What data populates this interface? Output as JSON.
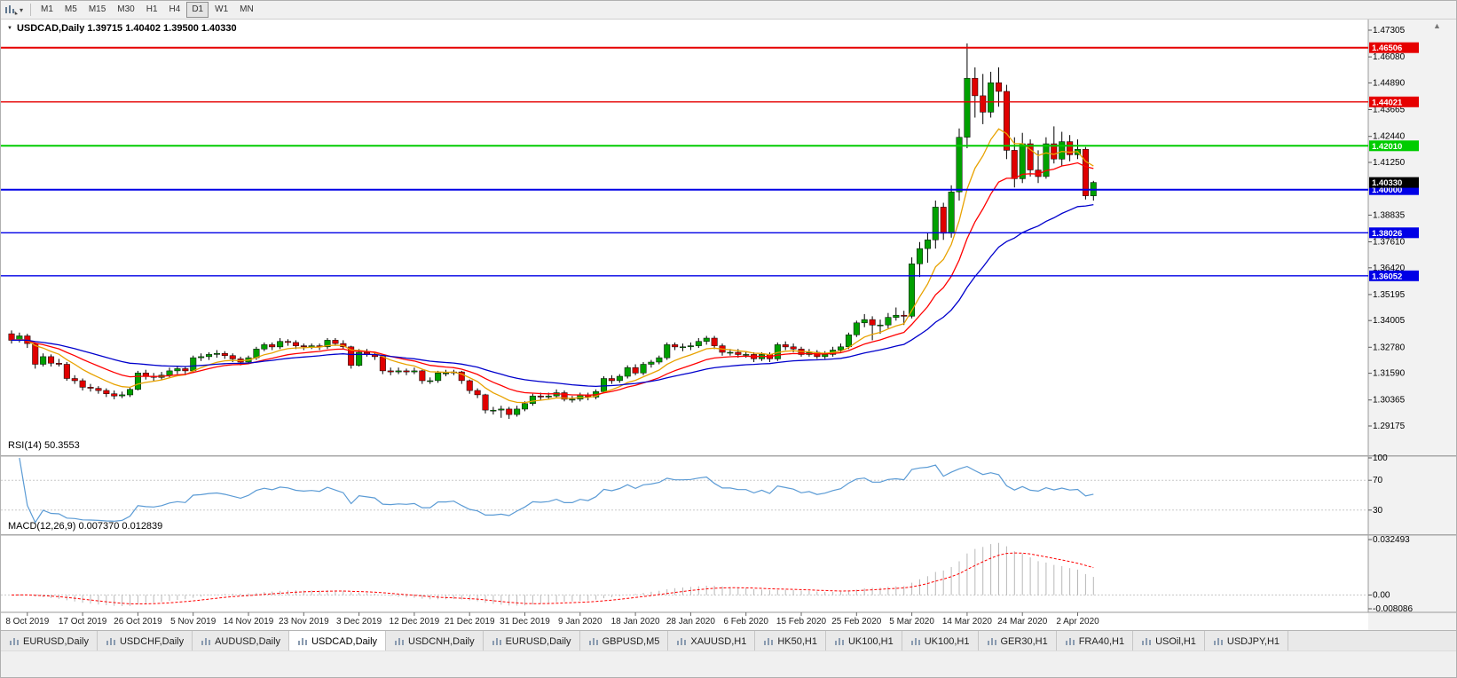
{
  "toolbar": {
    "timeframes": [
      {
        "label": "M1",
        "active": false
      },
      {
        "label": "M5",
        "active": false
      },
      {
        "label": "M15",
        "active": false
      },
      {
        "label": "M30",
        "active": false
      },
      {
        "label": "H1",
        "active": false
      },
      {
        "label": "H4",
        "active": false
      },
      {
        "label": "D1",
        "active": true
      },
      {
        "label": "W1",
        "active": false
      },
      {
        "label": "MN",
        "active": false
      }
    ],
    "dropdown_caret_glyph": "▾"
  },
  "chart": {
    "symbol": "USDCAD",
    "timeframe": "Daily",
    "title_text": "USDCAD,Daily  1.39715 1.40402 1.39500 1.40330",
    "ohlc": {
      "open": "1.39715",
      "high": "1.40402",
      "low": "1.39500",
      "close": "1.40330"
    },
    "collapse_glyph": "▼",
    "scroll_up_glyph": "▲"
  },
  "price_axis": {
    "ticks": [
      "1.47305",
      "1.46080",
      "1.44890",
      "1.43665",
      "1.42440",
      "1.41250",
      "1.38835",
      "1.37610",
      "1.36420",
      "1.35195",
      "1.34005",
      "1.32780",
      "1.31590",
      "1.30365",
      "1.29175"
    ]
  },
  "sr_lines": [
    {
      "label": "1.46506",
      "price": 1.46506,
      "color": "#e60000",
      "width": 2
    },
    {
      "label": "1.44021",
      "price": 1.44021,
      "color": "#e60000",
      "width": 1.4
    },
    {
      "label": "1.42010",
      "price": 1.4201,
      "color": "#00cc00",
      "width": 2
    },
    {
      "label": "1.40000",
      "price": 1.4,
      "color": "#0000e6",
      "width": 2
    },
    {
      "label": "1.38026",
      "price": 1.38026,
      "color": "#0000e6",
      "width": 1.4
    },
    {
      "label": "1.36052",
      "price": 1.36052,
      "color": "#0000e6",
      "width": 1.4
    }
  ],
  "current_price": {
    "label": "1.40330",
    "price": 1.4033,
    "color": "#000000"
  },
  "indicators": {
    "rsi": {
      "label": "RSI(14) 50.3553",
      "period": 14,
      "value": "50.3553",
      "levels": [
        {
          "label": "100",
          "value": 100
        },
        {
          "label": "70",
          "value": 70
        },
        {
          "label": "30",
          "value": 30
        }
      ],
      "line_color": "#5b9bd5"
    },
    "macd": {
      "label": "MACD(12,26,9) 0.007370 0.012839",
      "fast": 12,
      "slow": 26,
      "signal": 9,
      "values": [
        "0.007370",
        "0.012839"
      ],
      "ticks": [
        {
          "label": "0.032493",
          "value": 0.032493
        },
        {
          "label": "0.00",
          "value": 0
        },
        {
          "label": "-0.008086",
          "value": -0.008086
        }
      ],
      "histogram_color": "#b8b8b8",
      "signal_color": "#ff0000"
    }
  },
  "x_axis": {
    "labels": [
      "8 Oct 2019",
      "17 Oct 2019",
      "26 Oct 2019",
      "5 Nov 2019",
      "14 Nov 2019",
      "23 Nov 2019",
      "3 Dec 2019",
      "12 Dec 2019",
      "21 Dec 2019",
      "31 Dec 2019",
      "9 Jan 2020",
      "18 Jan 2020",
      "28 Jan 2020",
      "6 Feb 2020",
      "15 Feb 2020",
      "25 Feb 2020",
      "5 Mar 2020",
      "14 Mar 2020",
      "24 Mar 2020",
      "2 Apr 2020"
    ],
    "label_start_index": 2,
    "label_step": 7
  },
  "tabs": [
    {
      "label": "EURUSD,Daily",
      "active": false
    },
    {
      "label": "USDCHF,Daily",
      "active": false
    },
    {
      "label": "AUDUSD,Daily",
      "active": false
    },
    {
      "label": "USDCAD,Daily",
      "active": true
    },
    {
      "label": "USDCNH,Daily",
      "active": false
    },
    {
      "label": "EURUSD,Daily",
      "active": false
    },
    {
      "label": "GBPUSD,M5",
      "active": false
    },
    {
      "label": "XAUUSD,H1",
      "active": false
    },
    {
      "label": "HK50,H1",
      "active": false
    },
    {
      "label": "UK100,H1",
      "active": false
    },
    {
      "label": "UK100,H1",
      "active": false
    },
    {
      "label": "GER30,H1",
      "active": false
    },
    {
      "label": "FRA40,H1",
      "active": false
    },
    {
      "label": "USOil,H1",
      "active": false
    },
    {
      "label": "USDJPY,H1",
      "active": false
    }
  ],
  "chart_data": {
    "type": "candlestick",
    "symbol": "USDCAD",
    "timeframe": "D1",
    "title": "USDCAD,Daily",
    "last_ohlc": {
      "open": 1.39715,
      "high": 1.40402,
      "low": 1.395,
      "close": 1.4033
    },
    "y_range": [
      1.27874,
      1.47793
    ],
    "candles": [
      [
        1.334,
        1.3355,
        1.3295,
        1.331
      ],
      [
        1.331,
        1.3345,
        1.33,
        1.333
      ],
      [
        1.333,
        1.334,
        1.3275,
        1.3295
      ],
      [
        1.3295,
        1.33,
        1.318,
        1.32
      ],
      [
        1.32,
        1.325,
        1.319,
        1.3235
      ],
      [
        1.3235,
        1.3245,
        1.319,
        1.3205
      ],
      [
        1.3205,
        1.3225,
        1.319,
        1.32
      ],
      [
        1.32,
        1.321,
        1.3125,
        1.3135
      ],
      [
        1.3135,
        1.315,
        1.311,
        1.3125
      ],
      [
        1.3125,
        1.3135,
        1.308,
        1.3095
      ],
      [
        1.3095,
        1.311,
        1.3075,
        1.309
      ],
      [
        1.309,
        1.31,
        1.3065,
        1.308
      ],
      [
        1.308,
        1.309,
        1.305,
        1.3065
      ],
      [
        1.3065,
        1.308,
        1.304,
        1.3055
      ],
      [
        1.3055,
        1.3075,
        1.3045,
        1.306
      ],
      [
        1.306,
        1.3095,
        1.305,
        1.3085
      ],
      [
        1.3085,
        1.317,
        1.308,
        1.316
      ],
      [
        1.316,
        1.3175,
        1.313,
        1.3145
      ],
      [
        1.3145,
        1.316,
        1.3125,
        1.314
      ],
      [
        1.314,
        1.3165,
        1.313,
        1.315
      ],
      [
        1.315,
        1.3185,
        1.314,
        1.317
      ],
      [
        1.317,
        1.319,
        1.3155,
        1.318
      ],
      [
        1.318,
        1.319,
        1.315,
        1.317
      ],
      [
        1.317,
        1.324,
        1.316,
        1.323
      ],
      [
        1.323,
        1.325,
        1.3215,
        1.3235
      ],
      [
        1.3235,
        1.3255,
        1.322,
        1.3245
      ],
      [
        1.3245,
        1.3265,
        1.323,
        1.325
      ],
      [
        1.325,
        1.326,
        1.3225,
        1.324
      ],
      [
        1.324,
        1.325,
        1.321,
        1.3225
      ],
      [
        1.3225,
        1.3235,
        1.3195,
        1.321
      ],
      [
        1.321,
        1.324,
        1.32,
        1.323
      ],
      [
        1.323,
        1.328,
        1.322,
        1.327
      ],
      [
        1.327,
        1.33,
        1.326,
        1.329
      ],
      [
        1.329,
        1.33,
        1.3265,
        1.328
      ],
      [
        1.328,
        1.332,
        1.327,
        1.3305
      ],
      [
        1.3305,
        1.3315,
        1.3285,
        1.33
      ],
      [
        1.33,
        1.331,
        1.327,
        1.3285
      ],
      [
        1.3285,
        1.3295,
        1.3265,
        1.328
      ],
      [
        1.328,
        1.3295,
        1.327,
        1.3285
      ],
      [
        1.3285,
        1.3295,
        1.3265,
        1.328
      ],
      [
        1.328,
        1.332,
        1.327,
        1.331
      ],
      [
        1.331,
        1.332,
        1.3285,
        1.3295
      ],
      [
        1.3295,
        1.331,
        1.327,
        1.328
      ],
      [
        1.328,
        1.3285,
        1.318,
        1.3195
      ],
      [
        1.3195,
        1.327,
        1.319,
        1.3255
      ],
      [
        1.3255,
        1.327,
        1.3235,
        1.3245
      ],
      [
        1.3245,
        1.3255,
        1.322,
        1.3235
      ],
      [
        1.3235,
        1.324,
        1.3155,
        1.317
      ],
      [
        1.317,
        1.3185,
        1.315,
        1.3165
      ],
      [
        1.3165,
        1.3185,
        1.3155,
        1.317
      ],
      [
        1.317,
        1.318,
        1.315,
        1.3165
      ],
      [
        1.3165,
        1.3185,
        1.3155,
        1.317
      ],
      [
        1.317,
        1.3175,
        1.311,
        1.3125
      ],
      [
        1.3125,
        1.314,
        1.311,
        1.3125
      ],
      [
        1.3125,
        1.317,
        1.3115,
        1.316
      ],
      [
        1.316,
        1.3175,
        1.3145,
        1.316
      ],
      [
        1.316,
        1.3175,
        1.315,
        1.3165
      ],
      [
        1.3165,
        1.317,
        1.311,
        1.3125
      ],
      [
        1.3125,
        1.313,
        1.3065,
        1.308
      ],
      [
        1.308,
        1.309,
        1.3045,
        1.306
      ],
      [
        1.306,
        1.3065,
        1.2975,
        1.299
      ],
      [
        1.299,
        1.3005,
        1.297,
        1.299
      ],
      [
        1.299,
        1.301,
        1.2955,
        1.2995
      ],
      [
        1.2995,
        1.3005,
        1.295,
        1.297
      ],
      [
        1.297,
        1.301,
        1.296,
        1.2995
      ],
      [
        1.2995,
        1.303,
        1.2985,
        1.302
      ],
      [
        1.302,
        1.3065,
        1.301,
        1.3055
      ],
      [
        1.3055,
        1.307,
        1.3035,
        1.305
      ],
      [
        1.305,
        1.307,
        1.304,
        1.3055
      ],
      [
        1.3055,
        1.3085,
        1.3045,
        1.307
      ],
      [
        1.307,
        1.308,
        1.303,
        1.304
      ],
      [
        1.304,
        1.3055,
        1.3025,
        1.304
      ],
      [
        1.304,
        1.307,
        1.303,
        1.306
      ],
      [
        1.306,
        1.307,
        1.3035,
        1.305
      ],
      [
        1.305,
        1.3085,
        1.304,
        1.3075
      ],
      [
        1.3075,
        1.3145,
        1.307,
        1.3135
      ],
      [
        1.3135,
        1.315,
        1.311,
        1.3125
      ],
      [
        1.3125,
        1.3155,
        1.3115,
        1.3145
      ],
      [
        1.3145,
        1.3195,
        1.3135,
        1.3185
      ],
      [
        1.3185,
        1.32,
        1.315,
        1.316
      ],
      [
        1.316,
        1.321,
        1.315,
        1.32
      ],
      [
        1.32,
        1.322,
        1.3185,
        1.321
      ],
      [
        1.321,
        1.324,
        1.32,
        1.323
      ],
      [
        1.323,
        1.33,
        1.322,
        1.329
      ],
      [
        1.329,
        1.33,
        1.3265,
        1.328
      ],
      [
        1.328,
        1.3295,
        1.326,
        1.328
      ],
      [
        1.328,
        1.33,
        1.3265,
        1.3285
      ],
      [
        1.3285,
        1.332,
        1.3275,
        1.3305
      ],
      [
        1.3305,
        1.333,
        1.329,
        1.332
      ],
      [
        1.332,
        1.333,
        1.327,
        1.3285
      ],
      [
        1.3285,
        1.3295,
        1.324,
        1.3255
      ],
      [
        1.3255,
        1.327,
        1.324,
        1.3255
      ],
      [
        1.3255,
        1.327,
        1.323,
        1.3245
      ],
      [
        1.3245,
        1.326,
        1.323,
        1.3245
      ],
      [
        1.3245,
        1.3255,
        1.321,
        1.3225
      ],
      [
        1.3225,
        1.3255,
        1.3215,
        1.3245
      ],
      [
        1.3245,
        1.3255,
        1.321,
        1.3225
      ],
      [
        1.3225,
        1.33,
        1.3215,
        1.329
      ],
      [
        1.329,
        1.3305,
        1.3265,
        1.328
      ],
      [
        1.328,
        1.3295,
        1.3255,
        1.327
      ],
      [
        1.327,
        1.328,
        1.3235,
        1.3245
      ],
      [
        1.3245,
        1.327,
        1.3235,
        1.3255
      ],
      [
        1.3255,
        1.3265,
        1.3225,
        1.3235
      ],
      [
        1.3235,
        1.326,
        1.3225,
        1.3245
      ],
      [
        1.3245,
        1.328,
        1.3235,
        1.3265
      ],
      [
        1.3265,
        1.3295,
        1.3255,
        1.328
      ],
      [
        1.328,
        1.3345,
        1.327,
        1.3335
      ],
      [
        1.3335,
        1.34,
        1.3325,
        1.339
      ],
      [
        1.339,
        1.343,
        1.337,
        1.3405
      ],
      [
        1.3405,
        1.342,
        1.331,
        1.338
      ],
      [
        1.338,
        1.3405,
        1.334,
        1.338
      ],
      [
        1.338,
        1.3435,
        1.3365,
        1.3415
      ],
      [
        1.3415,
        1.346,
        1.34,
        1.3425
      ],
      [
        1.3425,
        1.3445,
        1.338,
        1.342
      ],
      [
        1.342,
        1.369,
        1.341,
        1.366
      ],
      [
        1.366,
        1.376,
        1.36,
        1.373
      ],
      [
        1.373,
        1.38,
        1.3665,
        1.377
      ],
      [
        1.377,
        1.395,
        1.373,
        1.392
      ],
      [
        1.392,
        1.394,
        1.377,
        1.38
      ],
      [
        1.38,
        1.402,
        1.378,
        1.399
      ],
      [
        1.399,
        1.428,
        1.395,
        1.424
      ],
      [
        1.424,
        1.467,
        1.419,
        1.451
      ],
      [
        1.451,
        1.456,
        1.433,
        1.443
      ],
      [
        1.443,
        1.453,
        1.43,
        1.4355
      ],
      [
        1.4355,
        1.454,
        1.433,
        1.449
      ],
      [
        1.449,
        1.456,
        1.438,
        1.445
      ],
      [
        1.445,
        1.448,
        1.414,
        1.418
      ],
      [
        1.418,
        1.424,
        1.401,
        1.405
      ],
      [
        1.405,
        1.426,
        1.403,
        1.421
      ],
      [
        1.421,
        1.423,
        1.406,
        1.409
      ],
      [
        1.409,
        1.418,
        1.403,
        1.406
      ],
      [
        1.406,
        1.424,
        1.405,
        1.421
      ],
      [
        1.421,
        1.429,
        1.412,
        1.414
      ],
      [
        1.414,
        1.4265,
        1.411,
        1.422
      ],
      [
        1.422,
        1.425,
        1.413,
        1.416
      ],
      [
        1.416,
        1.423,
        1.414,
        1.4185
      ],
      [
        1.4185,
        1.4195,
        1.3955,
        1.3972
      ],
      [
        1.39715,
        1.40402,
        1.395,
        1.4033
      ]
    ],
    "moving_averages": [
      {
        "name": "fast",
        "period": 8,
        "color": "#e8a200"
      },
      {
        "name": "medium",
        "period": 16,
        "color": "#ff0000"
      },
      {
        "name": "slow",
        "period": 34,
        "color": "#0000cc"
      }
    ],
    "colors": {
      "up": "#00a000",
      "down": "#e00000",
      "wick": "#000000",
      "background": "#ffffff"
    }
  }
}
